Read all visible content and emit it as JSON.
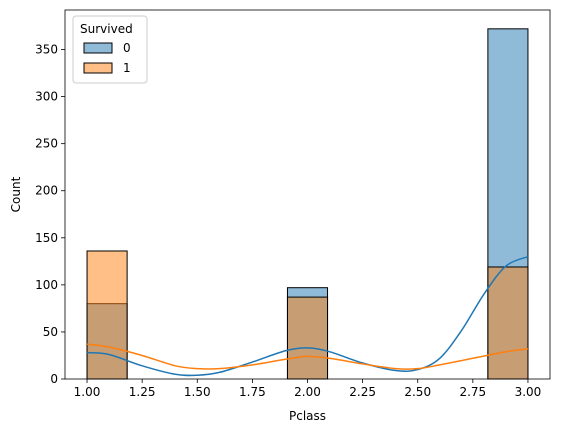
{
  "chart_data": {
    "type": "histogram",
    "xlabel": "Pclass",
    "ylabel": "Count",
    "xlim": [
      0.9,
      3.1
    ],
    "ylim": [
      0,
      392
    ],
    "x_ticks": [
      1.0,
      1.25,
      1.5,
      1.75,
      2.0,
      2.25,
      2.5,
      2.75,
      3.0
    ],
    "x_tick_labels": [
      "1.00",
      "1.25",
      "1.50",
      "1.75",
      "2.00",
      "2.25",
      "2.50",
      "2.75",
      "3.00"
    ],
    "y_ticks": [
      0,
      50,
      100,
      150,
      200,
      250,
      300,
      350
    ],
    "y_tick_labels": [
      "0",
      "50",
      "100",
      "150",
      "200",
      "250",
      "300",
      "350"
    ],
    "bin_edges": [
      1.0,
      1.1818,
      1.3636,
      1.5455,
      1.7273,
      1.9091,
      2.0909,
      2.2727,
      2.4545,
      2.6364,
      2.8182,
      3.0
    ],
    "legend": {
      "title": "Survived",
      "placement": "upper-left"
    },
    "series": [
      {
        "name": "0",
        "color": "#1f77b4",
        "counts": [
          80,
          0,
          0,
          0,
          0,
          97,
          0,
          0,
          0,
          0,
          372
        ],
        "kde": [
          [
            1.0,
            28
          ],
          [
            1.1,
            26
          ],
          [
            1.25,
            14
          ],
          [
            1.4,
            5
          ],
          [
            1.5,
            4
          ],
          [
            1.6,
            7
          ],
          [
            1.75,
            18
          ],
          [
            1.9,
            30
          ],
          [
            2.0,
            33
          ],
          [
            2.1,
            29
          ],
          [
            2.25,
            17
          ],
          [
            2.4,
            9
          ],
          [
            2.5,
            10
          ],
          [
            2.6,
            22
          ],
          [
            2.7,
            52
          ],
          [
            2.8,
            90
          ],
          [
            2.9,
            120
          ],
          [
            3.0,
            130
          ]
        ]
      },
      {
        "name": "1",
        "color": "#ff7f0e",
        "counts": [
          136,
          0,
          0,
          0,
          0,
          87,
          0,
          0,
          0,
          0,
          119
        ],
        "kde": [
          [
            1.0,
            37
          ],
          [
            1.1,
            34
          ],
          [
            1.25,
            25
          ],
          [
            1.4,
            14
          ],
          [
            1.5,
            11
          ],
          [
            1.6,
            11
          ],
          [
            1.75,
            15
          ],
          [
            1.9,
            21
          ],
          [
            2.0,
            24
          ],
          [
            2.1,
            22
          ],
          [
            2.25,
            16
          ],
          [
            2.4,
            11
          ],
          [
            2.5,
            11
          ],
          [
            2.6,
            15
          ],
          [
            2.75,
            22
          ],
          [
            2.9,
            29
          ],
          [
            3.0,
            32
          ]
        ]
      }
    ]
  }
}
